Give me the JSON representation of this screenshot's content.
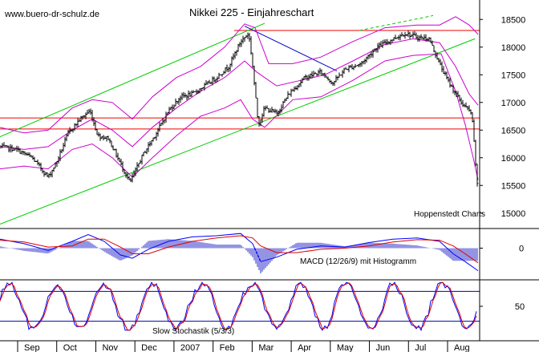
{
  "header": {
    "website": "www.buero-dr-schulz.de",
    "title": "Nikkei 225 - Einjahreschart"
  },
  "colors": {
    "price": "#000000",
    "bollinger": "#cc00cc",
    "channel": "#00cc00",
    "resistance": "#ee0000",
    "downtrend": "#0000cc",
    "macd_line": "#0000ff",
    "macd_signal": "#dd0000",
    "macd_hist": "#2a2ac8",
    "stoch_k": "#0000ff",
    "stoch_d": "#dd0000",
    "stoch_levels": "#0000aa"
  },
  "chart_data": [
    {
      "type": "line",
      "panel": "price",
      "title": "Nikkei 225 - Einjahreschart",
      "credit": "Hoppenstedt Charts",
      "y_ticks": [
        15000,
        15500,
        16000,
        16500,
        17000,
        17500,
        18000,
        18500
      ],
      "ylim": [
        14750,
        18750
      ],
      "x_ticks": [
        "Sep",
        "Oct",
        "Nov",
        "Dec",
        "2007",
        "Feb",
        "Mar",
        "Apr",
        "May",
        "Jun",
        "Jul",
        "Aug"
      ],
      "horizontal_lines": [
        18300,
        16720,
        16520
      ],
      "trend_channel": {
        "lower": [
          [
            0,
            14800
          ],
          [
            592,
            18150
          ]
        ],
        "upper": [
          [
            0,
            16380
          ],
          [
            330,
            18430
          ]
        ],
        "extension": [
          [
            448,
            18300
          ],
          [
            540,
            18570
          ]
        ]
      },
      "downtrend_line": [
        [
          305,
          18380
        ],
        [
          420,
          17570
        ]
      ],
      "series": [
        {
          "name": "close",
          "points": [
            [
              0,
              16200
            ],
            [
              20,
              16150
            ],
            [
              40,
              16000
            ],
            [
              60,
              15650
            ],
            [
              70,
              15900
            ],
            [
              85,
              16450
            ],
            [
              100,
              16700
            ],
            [
              112,
              16850
            ],
            [
              122,
              16400
            ],
            [
              135,
              16350
            ],
            [
              150,
              15900
            ],
            [
              162,
              15550
            ],
            [
              178,
              16050
            ],
            [
              195,
              16450
            ],
            [
              210,
              16850
            ],
            [
              225,
              17100
            ],
            [
              240,
              17150
            ],
            [
              255,
              17300
            ],
            [
              270,
              17450
            ],
            [
              285,
              17650
            ],
            [
              300,
              18100
            ],
            [
              310,
              18250
            ],
            [
              314,
              17800
            ],
            [
              322,
              16600
            ],
            [
              330,
              16900
            ],
            [
              345,
              16800
            ],
            [
              360,
              17150
            ],
            [
              380,
              17450
            ],
            [
              400,
              17550
            ],
            [
              415,
              17350
            ],
            [
              430,
              17600
            ],
            [
              450,
              17700
            ],
            [
              470,
              18000
            ],
            [
              490,
              18150
            ],
            [
              505,
              18250
            ],
            [
              520,
              18180
            ],
            [
              535,
              18150
            ],
            [
              548,
              17700
            ],
            [
              560,
              17350
            ],
            [
              575,
              17000
            ],
            [
              588,
              16800
            ],
            [
              592,
              16100
            ],
            [
              596,
              15300
            ]
          ]
        },
        {
          "name": "bollinger_upper",
          "points": [
            [
              0,
              16550
            ],
            [
              30,
              16450
            ],
            [
              60,
              16500
            ],
            [
              90,
              16900
            ],
            [
              115,
              17050
            ],
            [
              140,
              17000
            ],
            [
              165,
              16700
            ],
            [
              190,
              17100
            ],
            [
              220,
              17450
            ],
            [
              250,
              17650
            ],
            [
              280,
              18000
            ],
            [
              305,
              18420
            ],
            [
              318,
              18350
            ],
            [
              335,
              17700
            ],
            [
              365,
              17700
            ],
            [
              400,
              17820
            ],
            [
              440,
              18100
            ],
            [
              480,
              18350
            ],
            [
              520,
              18400
            ],
            [
              548,
              18400
            ],
            [
              568,
              18550
            ],
            [
              585,
              18400
            ],
            [
              596,
              18230
            ]
          ]
        },
        {
          "name": "bollinger_middle",
          "points": [
            [
              0,
              16200
            ],
            [
              30,
              16150
            ],
            [
              60,
              16200
            ],
            [
              90,
              16500
            ],
            [
              115,
              16700
            ],
            [
              140,
              16500
            ],
            [
              165,
              16200
            ],
            [
              190,
              16550
            ],
            [
              220,
              16900
            ],
            [
              250,
              17200
            ],
            [
              280,
              17450
            ],
            [
              305,
              17750
            ],
            [
              320,
              17550
            ],
            [
              345,
              17300
            ],
            [
              375,
              17400
            ],
            [
              405,
              17500
            ],
            [
              440,
              17750
            ],
            [
              480,
              18050
            ],
            [
              515,
              18150
            ],
            [
              548,
              18080
            ],
            [
              568,
              17650
            ],
            [
              585,
              17150
            ],
            [
              596,
              16950
            ]
          ]
        },
        {
          "name": "bollinger_lower",
          "points": [
            [
              0,
              15800
            ],
            [
              30,
              15850
            ],
            [
              60,
              15800
            ],
            [
              90,
              16150
            ],
            [
              115,
              16250
            ],
            [
              140,
              16000
            ],
            [
              165,
              15650
            ],
            [
              190,
              16000
            ],
            [
              220,
              16400
            ],
            [
              250,
              16750
            ],
            [
              280,
              16900
            ],
            [
              300,
              17050
            ],
            [
              315,
              16700
            ],
            [
              330,
              16550
            ],
            [
              365,
              17050
            ],
            [
              400,
              17100
            ],
            [
              440,
              17400
            ],
            [
              480,
              17750
            ],
            [
              515,
              17850
            ],
            [
              550,
              17880
            ],
            [
              568,
              17200
            ],
            [
              580,
              16600
            ],
            [
              590,
              16000
            ],
            [
              596,
              15600
            ]
          ]
        }
      ]
    },
    {
      "type": "bar",
      "panel": "macd",
      "label": "MACD (12/26/9) mit Histogramm",
      "y_ticks": [
        0
      ],
      "ylim": [
        -260,
        160
      ],
      "series": [
        {
          "name": "macd",
          "points": [
            [
              0,
              80
            ],
            [
              30,
              40
            ],
            [
              60,
              -20
            ],
            [
              90,
              60
            ],
            [
              110,
              120
            ],
            [
              130,
              60
            ],
            [
              150,
              -60
            ],
            [
              165,
              -90
            ],
            [
              185,
              -10
            ],
            [
              210,
              60
            ],
            [
              240,
              100
            ],
            [
              270,
              110
            ],
            [
              300,
              130
            ],
            [
              315,
              40
            ],
            [
              325,
              -120
            ],
            [
              345,
              -80
            ],
            [
              370,
              -10
            ],
            [
              400,
              20
            ],
            [
              430,
              10
            ],
            [
              460,
              50
            ],
            [
              490,
              80
            ],
            [
              520,
              90
            ],
            [
              548,
              60
            ],
            [
              565,
              -50
            ],
            [
              580,
              -120
            ],
            [
              596,
              -200
            ]
          ]
        },
        {
          "name": "signal",
          "points": [
            [
              0,
              70
            ],
            [
              30,
              55
            ],
            [
              60,
              10
            ],
            [
              90,
              20
            ],
            [
              110,
              80
            ],
            [
              130,
              80
            ],
            [
              150,
              10
            ],
            [
              165,
              -50
            ],
            [
              185,
              -50
            ],
            [
              210,
              10
            ],
            [
              240,
              60
            ],
            [
              270,
              90
            ],
            [
              300,
              110
            ],
            [
              315,
              90
            ],
            [
              325,
              20
            ],
            [
              345,
              -40
            ],
            [
              370,
              -40
            ],
            [
              400,
              -10
            ],
            [
              430,
              0
            ],
            [
              460,
              20
            ],
            [
              490,
              55
            ],
            [
              520,
              75
            ],
            [
              548,
              70
            ],
            [
              565,
              20
            ],
            [
              580,
              -50
            ],
            [
              596,
              -130
            ]
          ]
        }
      ]
    },
    {
      "type": "line",
      "panel": "stochastic",
      "label": "Slow Stochastik (5/3/3)",
      "y_ticks": [
        50
      ],
      "levels": [
        80,
        20
      ],
      "ylim": [
        0,
        100
      ]
    }
  ]
}
